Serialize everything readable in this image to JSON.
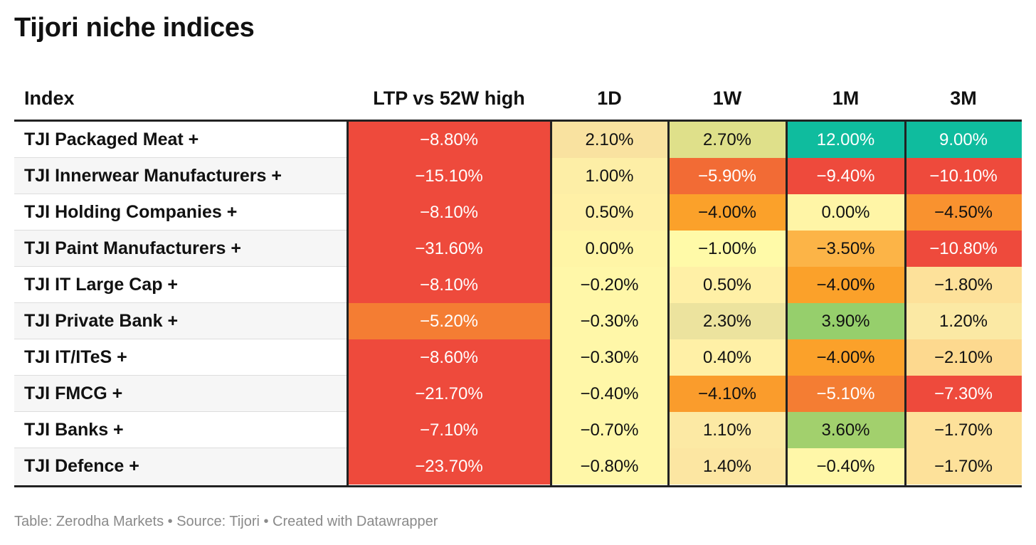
{
  "title": "Tijori niche indices",
  "source_note": "Table: Zerodha Markets • Source: Tijori • Created with Datawrapper",
  "chart_data": {
    "type": "table",
    "title": "Tijori niche indices",
    "columns": [
      "Index",
      "LTP vs 52W high",
      "1D",
      "1W",
      "1M",
      "3M"
    ],
    "rows": [
      {
        "name": "TJI Packaged Meat +",
        "values": [
          -8.8,
          2.1,
          2.7,
          12.0,
          9.0
        ],
        "labels": [
          "−8.80%",
          "2.10%",
          "2.70%",
          "12.00%",
          "9.00%"
        ],
        "colors": [
          "#ee4a3c",
          "#f9e2a0",
          "#dfe08a",
          "#0fbc9e",
          "#0fbc9e"
        ]
      },
      {
        "name": "TJI Innerwear Manufacturers +",
        "values": [
          -15.1,
          1.0,
          -5.9,
          -9.4,
          -10.1
        ],
        "labels": [
          "−15.10%",
          "1.00%",
          "−5.90%",
          "−9.40%",
          "−10.10%"
        ],
        "colors": [
          "#ee4a3c",
          "#fdeea6",
          "#f26b35",
          "#ee4a3c",
          "#ee4a3c"
        ]
      },
      {
        "name": "TJI Holding Companies +",
        "values": [
          -8.1,
          0.5,
          -4.0,
          0.0,
          -4.5
        ],
        "labels": [
          "−8.10%",
          "0.50%",
          "−4.00%",
          "0.00%",
          "−4.50%"
        ],
        "colors": [
          "#ee4a3c",
          "#fff0a6",
          "#fba12a",
          "#fff5a6",
          "#f9922f"
        ]
      },
      {
        "name": "TJI Paint Manufacturers +",
        "values": [
          -31.6,
          0.0,
          -1.0,
          -3.5,
          -10.8
        ],
        "labels": [
          "−31.60%",
          "0.00%",
          "−1.00%",
          "−3.50%",
          "−10.80%"
        ],
        "colors": [
          "#ee4a3c",
          "#fff5a6",
          "#fffaa8",
          "#fcb447",
          "#ee4a3c"
        ]
      },
      {
        "name": "TJI IT Large Cap +",
        "values": [
          -8.1,
          -0.2,
          0.5,
          -4.0,
          -1.8
        ],
        "labels": [
          "−8.10%",
          "−0.20%",
          "0.50%",
          "−4.00%",
          "−1.80%"
        ],
        "colors": [
          "#ee4a3c",
          "#fff7a8",
          "#fff0a6",
          "#fba12a",
          "#fde19a"
        ]
      },
      {
        "name": "TJI Private Bank +",
        "values": [
          -5.2,
          -0.3,
          2.3,
          3.9,
          1.2
        ],
        "labels": [
          "−5.20%",
          "−0.30%",
          "2.30%",
          "3.90%",
          "1.20%"
        ],
        "colors": [
          "#f47d33",
          "#fff7a8",
          "#ece39e",
          "#96cf6c",
          "#fbe9a4"
        ]
      },
      {
        "name": "TJI IT/ITeS +",
        "values": [
          -8.6,
          -0.3,
          0.4,
          -4.0,
          -2.1
        ],
        "labels": [
          "−8.60%",
          "−0.30%",
          "0.40%",
          "−4.00%",
          "−2.10%"
        ],
        "colors": [
          "#ee4a3c",
          "#fff7a8",
          "#fff0a6",
          "#fba12a",
          "#fdd98f"
        ]
      },
      {
        "name": "TJI FMCG +",
        "values": [
          -21.7,
          -0.4,
          -4.1,
          -5.1,
          -7.3
        ],
        "labels": [
          "−21.70%",
          "−0.40%",
          "−4.10%",
          "−5.10%",
          "−7.30%"
        ],
        "colors": [
          "#ee4a3c",
          "#fff7a8",
          "#fa9c2c",
          "#f47d33",
          "#ee4a3c"
        ]
      },
      {
        "name": "TJI Banks +",
        "values": [
          -7.1,
          -0.7,
          1.1,
          3.6,
          -1.7
        ],
        "labels": [
          "−7.10%",
          "−0.70%",
          "1.10%",
          "3.60%",
          "−1.70%"
        ],
        "colors": [
          "#ee4a3c",
          "#fff7a8",
          "#fce9a4",
          "#a2d06d",
          "#fde19a"
        ]
      },
      {
        "name": "TJI Defence +",
        "values": [
          -23.7,
          -0.8,
          1.4,
          -0.4,
          -1.7
        ],
        "labels": [
          "−23.70%",
          "−0.80%",
          "1.40%",
          "−0.40%",
          "−1.70%"
        ],
        "colors": [
          "#ee4a3c",
          "#fff7a8",
          "#fce6a2",
          "#fff7a8",
          "#fde19a"
        ]
      }
    ],
    "text_colors": {
      "on_dark": "#ffffff",
      "on_light": "#111111"
    }
  }
}
